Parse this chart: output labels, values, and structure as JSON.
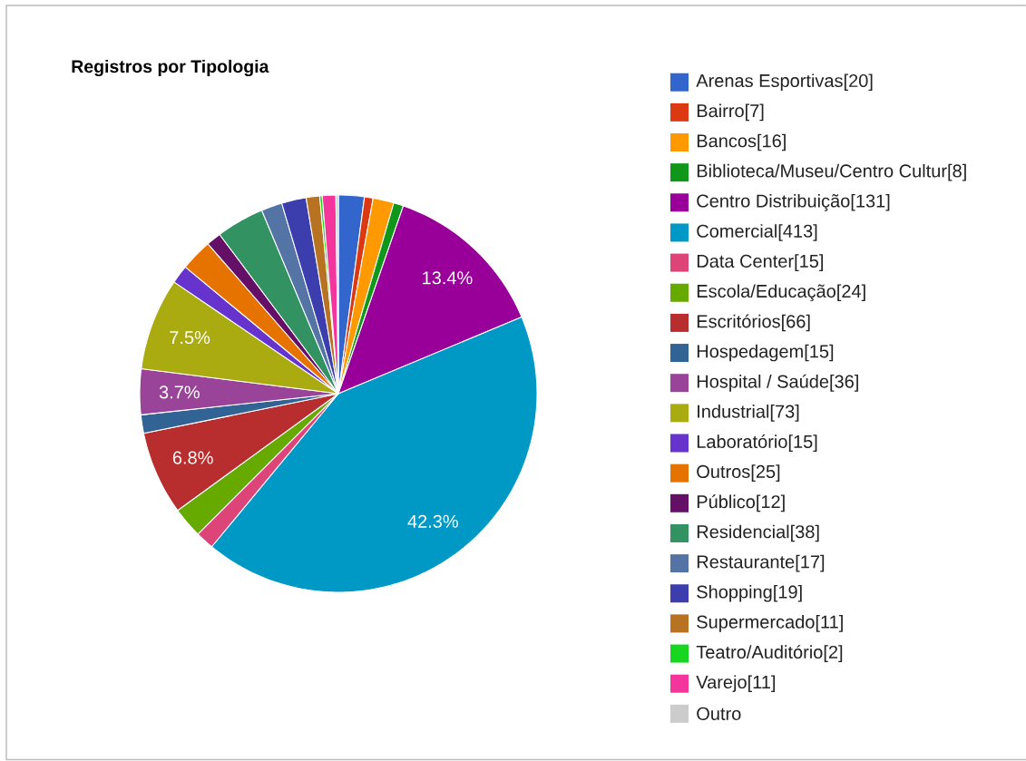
{
  "chart_data": {
    "type": "pie",
    "title": "Registros por Tipologia",
    "categories": [
      "Arenas Esportivas[20]",
      "Bairro[7]",
      "Bancos[16]",
      "Biblioteca/Museu/Centro Cultur[8]",
      "Centro Distribuição[131]",
      "Comercial[413]",
      "Data Center[15]",
      "Escola/Educação[24]",
      "Escritórios[66]",
      "Hospedagem[15]",
      "Hospital / Saúde[36]",
      "Industrial[73]",
      "Laboratório[15]",
      "Outros[25]",
      "Público[12]",
      "Residencial[38]",
      "Restaurante[17]",
      "Shopping[19]",
      "Supermercado[11]",
      "Teatro/Auditório[2]",
      "Varejo[11]",
      "Outro"
    ],
    "values": [
      2.1,
      0.7,
      1.7,
      0.8,
      13.4,
      42.3,
      1.5,
      2.5,
      6.8,
      1.5,
      3.7,
      7.5,
      1.5,
      2.6,
      1.2,
      3.9,
      1.7,
      2.0,
      1.1,
      0.2,
      1.1,
      0.2
    ],
    "colors": [
      "#3366cc",
      "#dc3912",
      "#ff9900",
      "#109618",
      "#990099",
      "#0099c6",
      "#dd4477",
      "#66aa00",
      "#b82e2e",
      "#316395",
      "#994499",
      "#aaaa11",
      "#6633cc",
      "#e67300",
      "#651067",
      "#329262",
      "#5574a6",
      "#3b3eac",
      "#b77322",
      "#16d620",
      "#f4359e",
      "#cccccc"
    ],
    "value_labels": [
      null,
      null,
      null,
      null,
      "13.4%",
      "42.3%",
      null,
      null,
      "6.8%",
      null,
      "3.7%",
      "7.5%",
      null,
      null,
      null,
      null,
      null,
      null,
      null,
      null,
      null,
      null
    ],
    "legend": "right"
  }
}
